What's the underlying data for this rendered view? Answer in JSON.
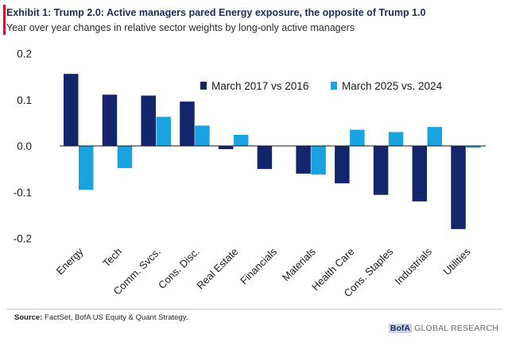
{
  "header": {
    "title": "Exhibit 1: Trump 2.0: Active managers pared Energy exposure, the opposite of Trump 1.0",
    "subtitle": "Year over year changes in relative sector weights by long-only active managers"
  },
  "chart_data": {
    "type": "bar",
    "title": "Exhibit 1: Trump 2.0: Active managers pared Energy exposure, the opposite of Trump 1.0",
    "subtitle": "Year over year changes in relative sector weights by long-only active managers",
    "categories": [
      "Energy",
      "Tech",
      "Comm. Svcs.",
      "Cons. Disc.",
      "Real Estate",
      "Financials",
      "Materials",
      "Health Care",
      "Cons. Staples",
      "Industrials",
      "Utilities"
    ],
    "series": [
      {
        "name": "March 2017 vs 2016",
        "color": "#13256b",
        "values": [
          0.156,
          0.111,
          0.109,
          0.096,
          -0.007,
          -0.05,
          -0.06,
          -0.081,
          -0.106,
          -0.12,
          -0.18
        ]
      },
      {
        "name": "March 2025 vs. 2024",
        "color": "#1aa3e0",
        "values": [
          -0.095,
          -0.048,
          0.063,
          0.044,
          0.024,
          null,
          -0.062,
          0.035,
          0.03,
          0.041,
          -0.004
        ]
      }
    ],
    "ylim": [
      -0.2,
      0.2
    ],
    "yticks": [
      0.2,
      0.1,
      0.0,
      -0.1,
      -0.2
    ],
    "ytick_labels": [
      "0.2",
      "0.1",
      "0.0",
      "-0.1",
      "-0.2"
    ],
    "xlabel": "",
    "ylabel": "",
    "legend_position": "top-right",
    "grid": false
  },
  "footer": {
    "source_label": "Source:",
    "source_text": " FactSet, BofA US Equity & Quant Strategy.",
    "brand_logo": "BofA",
    "brand_text": " GLOBAL RESEARCH"
  }
}
